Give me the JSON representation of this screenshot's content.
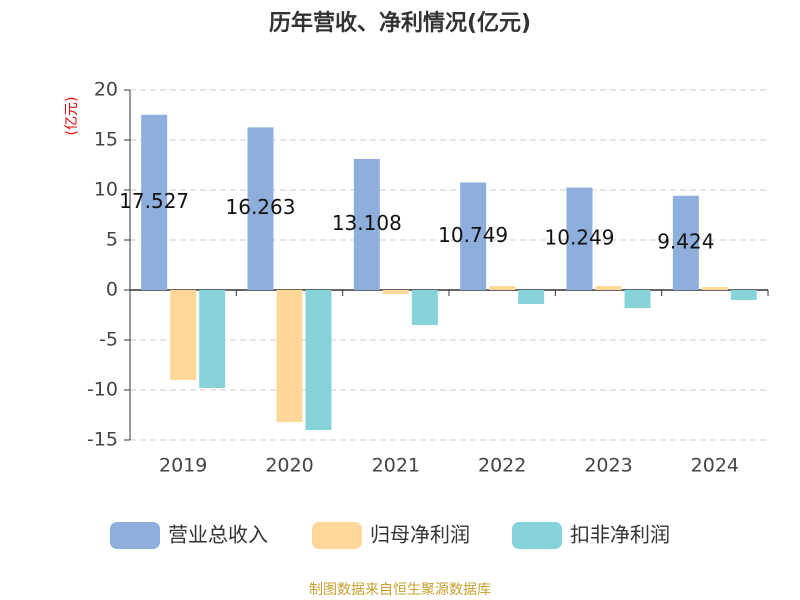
{
  "chart_data": {
    "type": "bar",
    "title": "历年营收、净利情况(亿元)",
    "y_label": "(亿元)",
    "source": "制图数据来自恒生聚源数据库",
    "categories": [
      "2019",
      "2020",
      "2021",
      "2022",
      "2023",
      "2024"
    ],
    "series": [
      {
        "name": "营业总收入",
        "color": "#8eaedb",
        "values": [
          17.527,
          16.263,
          13.108,
          10.749,
          10.249,
          9.424
        ],
        "data_labels": true
      },
      {
        "name": "归母净利润",
        "color": "#ffd899",
        "values": [
          -9.0,
          -13.2,
          -0.4,
          0.4,
          0.4,
          0.3
        ]
      },
      {
        "name": "扣非净利润",
        "color": "#85d3d8",
        "values": [
          -9.8,
          -14.0,
          -3.5,
          -1.4,
          -1.8,
          -1.0
        ]
      }
    ],
    "ylim": [
      -15,
      20
    ],
    "yticks": [
      -15,
      -10,
      -5,
      0,
      5,
      10,
      15,
      20
    ],
    "grid": true
  }
}
